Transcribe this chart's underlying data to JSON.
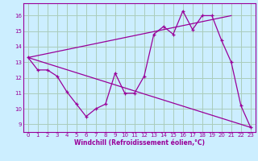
{
  "bg_color": "#cceeff",
  "line_color": "#990099",
  "grid_color": "#aaccbb",
  "xlim": [
    -0.5,
    23.5
  ],
  "ylim": [
    8.5,
    16.8
  ],
  "yticks": [
    9,
    10,
    11,
    12,
    13,
    14,
    15,
    16
  ],
  "xticks": [
    0,
    1,
    2,
    3,
    4,
    5,
    6,
    7,
    8,
    9,
    10,
    11,
    12,
    13,
    14,
    15,
    16,
    17,
    18,
    19,
    20,
    21,
    22,
    23
  ],
  "xlabel": "Windchill (Refroidissement éolien,°C)",
  "line1_x": [
    0,
    1,
    2,
    3,
    4,
    5,
    6,
    7,
    8,
    9,
    10,
    11,
    12,
    13,
    14,
    15,
    16,
    17,
    18,
    19,
    20,
    21,
    22,
    23
  ],
  "line1_y": [
    13.3,
    12.5,
    12.5,
    12.1,
    11.1,
    10.3,
    9.5,
    10.0,
    10.3,
    12.3,
    11.0,
    11.0,
    12.1,
    14.8,
    15.3,
    14.8,
    16.3,
    15.1,
    16.0,
    16.0,
    14.4,
    13.0,
    10.2,
    8.8
  ],
  "line2_x": [
    0,
    21
  ],
  "line2_y": [
    13.3,
    16.0
  ],
  "line3_x": [
    0,
    23
  ],
  "line3_y": [
    13.3,
    8.8
  ]
}
